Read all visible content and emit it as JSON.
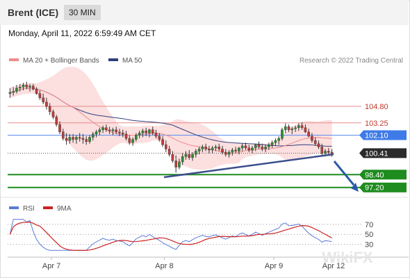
{
  "header": {
    "instrument": "Brent (ICE)",
    "timeframe": "30 MIN"
  },
  "datetime": "Monday, April 11, 2022 6:59:49 AM CET",
  "legend": {
    "ma20_label": "MA 20 + Bollinger Bands",
    "ma50_label": "MA 50",
    "ma20_color": "#f08a8a",
    "ma50_color": "#2d3f7c",
    "credit": "Research © 2022 Trading Central"
  },
  "watermark": "WikiFX",
  "chart_data": [
    {
      "type": "candlestick",
      "x_axis_labels": [
        "Apr 7",
        "Apr 8",
        "Apr 9",
        "Apr 12"
      ],
      "ylim": [
        96.4,
        107.6
      ],
      "levels": [
        {
          "label": "104.80",
          "value": 104.8,
          "role": "resistance",
          "color": "#e88a8a",
          "text_color": "#c0392b",
          "boxed": false
        },
        {
          "label": "103.25",
          "value": 103.25,
          "role": "resistance",
          "color": "#e88a8a",
          "text_color": "#c0392b",
          "boxed": false
        },
        {
          "label": "102.10",
          "value": 102.1,
          "role": "pivot",
          "color": "#5b8def",
          "text_color": "#ffffff",
          "boxed": true,
          "box_color": "#3f7be8"
        },
        {
          "label": "100.41",
          "value": 100.41,
          "role": "last",
          "color": "#555555",
          "text_color": "#ffffff",
          "boxed": true,
          "box_color": "#2b2b2b"
        },
        {
          "label": "98.40",
          "value": 98.4,
          "role": "support",
          "color": "#1e8c1e",
          "text_color": "#ffffff",
          "boxed": true,
          "box_color": "#1e8c1e"
        },
        {
          "label": "97.20",
          "value": 97.2,
          "role": "support",
          "color": "#1e8c1e",
          "text_color": "#ffffff",
          "boxed": true,
          "box_color": "#1e8c1e"
        }
      ],
      "candles": [
        [
          106.0,
          106.5,
          105.6,
          106.1
        ],
        [
          106.1,
          106.6,
          105.8,
          106.2
        ],
        [
          106.2,
          106.8,
          106.0,
          106.5
        ],
        [
          106.5,
          106.9,
          106.2,
          106.6
        ],
        [
          106.6,
          107.0,
          106.3,
          106.8
        ],
        [
          106.8,
          107.1,
          106.4,
          106.6
        ],
        [
          106.6,
          106.9,
          106.2,
          106.7
        ],
        [
          106.7,
          106.9,
          106.3,
          106.4
        ],
        [
          106.4,
          106.6,
          105.9,
          106.0
        ],
        [
          106.0,
          106.3,
          105.4,
          105.6
        ],
        [
          105.6,
          106.0,
          105.0,
          105.2
        ],
        [
          105.2,
          105.6,
          104.5,
          104.8
        ],
        [
          104.8,
          105.1,
          104.0,
          104.3
        ],
        [
          104.3,
          104.5,
          103.6,
          103.8
        ],
        [
          103.8,
          104.0,
          102.9,
          103.1
        ],
        [
          103.1,
          103.4,
          102.2,
          102.4
        ],
        [
          102.4,
          102.7,
          101.6,
          101.8
        ],
        [
          101.8,
          102.3,
          101.2,
          101.6
        ],
        [
          101.6,
          102.2,
          101.3,
          101.9
        ],
        [
          101.9,
          102.2,
          101.4,
          101.7
        ],
        [
          101.7,
          102.1,
          101.3,
          101.9
        ],
        [
          101.9,
          102.3,
          101.5,
          101.8
        ],
        [
          101.8,
          102.2,
          101.3,
          101.7
        ],
        [
          101.7,
          102.0,
          101.2,
          101.5
        ],
        [
          101.5,
          102.1,
          101.3,
          101.9
        ],
        [
          101.9,
          102.4,
          101.6,
          102.2
        ],
        [
          102.2,
          102.6,
          101.9,
          102.4
        ],
        [
          102.4,
          102.8,
          102.1,
          102.6
        ],
        [
          102.6,
          103.0,
          102.3,
          102.8
        ],
        [
          102.8,
          103.1,
          102.4,
          102.6
        ],
        [
          102.6,
          102.9,
          102.2,
          102.5
        ],
        [
          102.5,
          102.8,
          102.1,
          102.6
        ],
        [
          102.6,
          102.9,
          102.2,
          102.4
        ],
        [
          102.4,
          102.7,
          102.0,
          102.3
        ],
        [
          102.3,
          102.6,
          101.9,
          102.2
        ],
        [
          102.2,
          102.5,
          101.6,
          101.8
        ],
        [
          101.8,
          102.1,
          101.2,
          101.4
        ],
        [
          101.4,
          101.9,
          101.1,
          101.7
        ],
        [
          101.7,
          102.3,
          101.5,
          102.1
        ],
        [
          102.1,
          102.5,
          101.8,
          102.3
        ],
        [
          102.3,
          102.7,
          101.9,
          102.5
        ],
        [
          102.5,
          102.8,
          102.0,
          102.3
        ],
        [
          102.3,
          102.7,
          101.9,
          102.6
        ],
        [
          102.6,
          102.9,
          102.1,
          102.3
        ],
        [
          102.3,
          102.6,
          101.8,
          102.0
        ],
        [
          102.0,
          102.3,
          101.5,
          101.7
        ],
        [
          101.7,
          102.0,
          101.0,
          101.2
        ],
        [
          101.2,
          101.6,
          100.5,
          100.8
        ],
        [
          100.8,
          101.1,
          100.1,
          100.3
        ],
        [
          100.3,
          100.6,
          99.5,
          99.7
        ],
        [
          99.7,
          100.2,
          98.6,
          99.1
        ],
        [
          99.1,
          99.9,
          98.9,
          99.6
        ],
        [
          99.6,
          100.4,
          99.3,
          100.1
        ],
        [
          100.1,
          100.6,
          99.8,
          100.3
        ],
        [
          100.3,
          100.7,
          99.8,
          100.0
        ],
        [
          100.0,
          100.5,
          99.7,
          100.3
        ],
        [
          100.3,
          100.8,
          100.0,
          100.6
        ],
        [
          100.6,
          101.0,
          100.3,
          100.8
        ],
        [
          100.8,
          101.2,
          100.5,
          101.0
        ],
        [
          101.0,
          101.3,
          100.6,
          100.8
        ],
        [
          100.8,
          101.1,
          100.4,
          100.7
        ],
        [
          100.7,
          101.1,
          100.4,
          100.9
        ],
        [
          100.9,
          101.2,
          100.6,
          101.0
        ],
        [
          101.0,
          101.3,
          100.6,
          100.8
        ],
        [
          100.8,
          101.1,
          100.3,
          100.5
        ],
        [
          100.5,
          100.8,
          100.1,
          100.3
        ],
        [
          100.3,
          100.7,
          100.0,
          100.5
        ],
        [
          100.5,
          100.9,
          100.2,
          100.7
        ],
        [
          100.7,
          101.0,
          100.4,
          100.6
        ],
        [
          100.6,
          101.0,
          100.3,
          100.9
        ],
        [
          100.9,
          101.3,
          100.6,
          101.1
        ],
        [
          101.1,
          101.4,
          100.7,
          100.9
        ],
        [
          100.9,
          101.2,
          100.5,
          100.7
        ],
        [
          100.7,
          101.1,
          100.4,
          100.9
        ],
        [
          100.9,
          101.3,
          100.6,
          101.2
        ],
        [
          101.2,
          101.5,
          100.8,
          101.0
        ],
        [
          101.0,
          101.3,
          100.6,
          100.8
        ],
        [
          100.8,
          101.2,
          100.5,
          101.0
        ],
        [
          101.0,
          101.4,
          100.7,
          101.2
        ],
        [
          101.2,
          101.6,
          100.9,
          101.4
        ],
        [
          101.4,
          101.8,
          101.1,
          101.6
        ],
        [
          101.6,
          102.0,
          101.2,
          101.8
        ],
        [
          101.8,
          102.8,
          101.6,
          102.6
        ],
        [
          102.6,
          103.2,
          102.3,
          102.9
        ],
        [
          102.9,
          103.1,
          102.4,
          102.6
        ],
        [
          102.6,
          102.9,
          102.2,
          102.7
        ],
        [
          102.7,
          103.0,
          102.4,
          102.8
        ],
        [
          102.8,
          103.2,
          102.5,
          103.0
        ],
        [
          103.0,
          103.3,
          102.6,
          102.8
        ],
        [
          102.8,
          103.1,
          102.3,
          102.4
        ],
        [
          102.4,
          102.7,
          101.9,
          102.0
        ],
        [
          102.0,
          102.3,
          101.4,
          101.6
        ],
        [
          101.6,
          101.9,
          101.1,
          101.3
        ],
        [
          101.3,
          101.6,
          100.8,
          101.0
        ],
        [
          101.0,
          101.3,
          100.2,
          100.4
        ],
        [
          100.4,
          100.8,
          100.1,
          100.6
        ],
        [
          100.6,
          100.9,
          100.2,
          100.5
        ],
        [
          100.5,
          100.8,
          100.1,
          100.41
        ]
      ]
    },
    {
      "type": "line",
      "name": "RSI",
      "ylim": [
        10,
        85
      ],
      "y_ticks": [
        70,
        50,
        30
      ],
      "legend": [
        {
          "name": "RSI",
          "color": "#5b7bd5"
        },
        {
          "name": "9MA",
          "color": "#cc2222"
        }
      ]
    }
  ]
}
